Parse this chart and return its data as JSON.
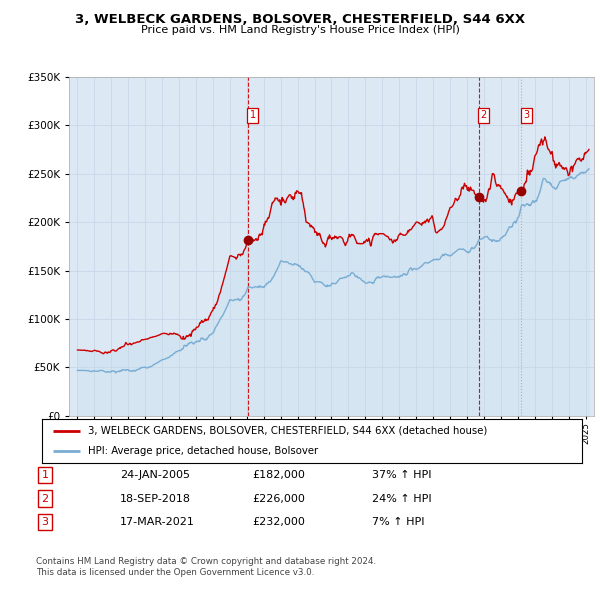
{
  "title1": "3, WELBECK GARDENS, BOLSOVER, CHESTERFIELD, S44 6XX",
  "title2": "Price paid vs. HM Land Registry's House Price Index (HPI)",
  "legend_line1": "3, WELBECK GARDENS, BOLSOVER, CHESTERFIELD, S44 6XX (detached house)",
  "legend_line2": "HPI: Average price, detached house, Bolsover",
  "sales": [
    {
      "num": 1,
      "date_str": "24-JAN-2005",
      "date_x": 2005.07,
      "price": 182000,
      "hpi_pct": "37% ↑ HPI"
    },
    {
      "num": 2,
      "date_str": "18-SEP-2018",
      "date_x": 2018.71,
      "price": 226000,
      "hpi_pct": "24% ↑ HPI"
    },
    {
      "num": 3,
      "date_str": "17-MAR-2021",
      "date_x": 2021.21,
      "price": 232000,
      "hpi_pct": "7% ↑ HPI"
    }
  ],
  "footnote1": "Contains HM Land Registry data © Crown copyright and database right 2024.",
  "footnote2": "This data is licensed under the Open Government Licence v3.0.",
  "ylim": [
    0,
    350000
  ],
  "xlim": [
    1994.5,
    2025.5
  ],
  "red_color": "#cc0000",
  "blue_color": "#7aadd4",
  "fill_color": "#d0e4f0",
  "bg_color": "#dde8f5",
  "plot_bg": "#ffffff",
  "grid_color": "#c8d8e8"
}
